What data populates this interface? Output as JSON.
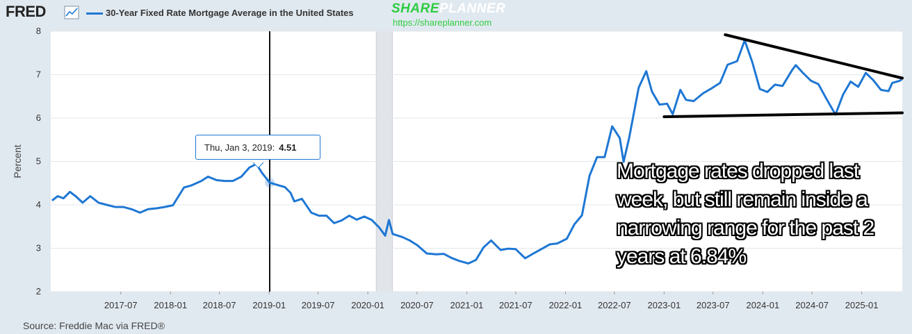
{
  "header": {
    "logo_text": "FRED",
    "logo_icon": "line-chart-icon",
    "series_title": "30-Year Fixed Rate Mortgage Average in the United States",
    "series_color": "#1e77d3"
  },
  "watermark": {
    "brand_part1": "SHARE",
    "brand_part2": "PLANNER",
    "url": "https://shareplanner.com",
    "brand_color": "#2ecc40"
  },
  "tooltip": {
    "date": "Thu, Jan 3, 2019:",
    "value": "4.51"
  },
  "annotation": {
    "text": "Mortgage rates dropped last week, but still remain inside a narrowing range for the past 2 years at 6.84%"
  },
  "source": "Source: Freddie Mac via FRED®",
  "chart_data": {
    "type": "line",
    "ylabel": "Percent",
    "ylim": [
      2,
      8
    ],
    "yticks": [
      2,
      3,
      4,
      5,
      6,
      7,
      8
    ],
    "xlim": [
      "2016-10-15",
      "2025-05-31"
    ],
    "xticks": [
      "2017-07",
      "2018-01",
      "2018-07",
      "2019-01",
      "2019-07",
      "2020-01",
      "2020-07",
      "2021-01",
      "2021-07",
      "2022-01",
      "2022-07",
      "2023-01",
      "2023-07",
      "2024-01",
      "2024-07",
      "2025-01"
    ],
    "grid": "horizontal",
    "recession": {
      "start": "2020-02",
      "end": "2020-04"
    },
    "crosshair": "2019-01-03",
    "series": [
      {
        "values": [
          [
            "2016-10-20",
            4.1
          ],
          [
            "2016-11-10",
            4.2
          ],
          [
            "2016-12-01",
            4.15
          ],
          [
            "2016-12-25",
            4.3
          ],
          [
            "2017-01-15",
            4.2
          ],
          [
            "2017-02-10",
            4.05
          ],
          [
            "2017-03-10",
            4.2
          ],
          [
            "2017-04-10",
            4.05
          ],
          [
            "2017-05-10",
            4.0
          ],
          [
            "2017-06-10",
            3.95
          ],
          [
            "2017-07-10",
            3.95
          ],
          [
            "2017-08-10",
            3.9
          ],
          [
            "2017-09-10",
            3.82
          ],
          [
            "2017-10-10",
            3.9
          ],
          [
            "2017-11-10",
            3.92
          ],
          [
            "2017-12-10",
            3.95
          ],
          [
            "2018-01-10",
            3.99
          ],
          [
            "2018-01-31",
            4.2
          ],
          [
            "2018-02-20",
            4.4
          ],
          [
            "2018-03-20",
            4.45
          ],
          [
            "2018-04-25",
            4.55
          ],
          [
            "2018-05-20",
            4.65
          ],
          [
            "2018-06-20",
            4.57
          ],
          [
            "2018-07-20",
            4.55
          ],
          [
            "2018-08-20",
            4.55
          ],
          [
            "2018-09-20",
            4.65
          ],
          [
            "2018-10-20",
            4.86
          ],
          [
            "2018-11-15",
            4.94
          ],
          [
            "2018-12-05",
            4.74
          ],
          [
            "2019-01-03",
            4.51
          ],
          [
            "2019-01-31",
            4.46
          ],
          [
            "2019-02-28",
            4.41
          ],
          [
            "2019-03-21",
            4.28
          ],
          [
            "2019-04-04",
            4.08
          ],
          [
            "2019-05-02",
            4.14
          ],
          [
            "2019-06-06",
            3.82
          ],
          [
            "2019-07-04",
            3.75
          ],
          [
            "2019-08-01",
            3.75
          ],
          [
            "2019-08-29",
            3.58
          ],
          [
            "2019-09-26",
            3.64
          ],
          [
            "2019-10-24",
            3.75
          ],
          [
            "2019-11-21",
            3.66
          ],
          [
            "2019-12-19",
            3.73
          ],
          [
            "2020-01-16",
            3.65
          ],
          [
            "2020-02-13",
            3.47
          ],
          [
            "2020-03-05",
            3.29
          ],
          [
            "2020-03-19",
            3.65
          ],
          [
            "2020-04-02",
            3.33
          ],
          [
            "2020-05-07",
            3.26
          ],
          [
            "2020-06-04",
            3.18
          ],
          [
            "2020-07-02",
            3.07
          ],
          [
            "2020-08-06",
            2.88
          ],
          [
            "2020-09-10",
            2.86
          ],
          [
            "2020-10-08",
            2.87
          ],
          [
            "2020-11-05",
            2.78
          ],
          [
            "2020-12-03",
            2.71
          ],
          [
            "2021-01-07",
            2.65
          ],
          [
            "2021-02-04",
            2.73
          ],
          [
            "2021-03-04",
            3.02
          ],
          [
            "2021-04-01",
            3.18
          ],
          [
            "2021-05-06",
            2.96
          ],
          [
            "2021-06-03",
            2.99
          ],
          [
            "2021-07-01",
            2.98
          ],
          [
            "2021-08-05",
            2.77
          ],
          [
            "2021-09-02",
            2.87
          ],
          [
            "2021-10-07",
            2.99
          ],
          [
            "2021-11-04",
            3.09
          ],
          [
            "2021-12-02",
            3.11
          ],
          [
            "2022-01-06",
            3.22
          ],
          [
            "2022-02-03",
            3.55
          ],
          [
            "2022-03-03",
            3.76
          ],
          [
            "2022-03-31",
            4.67
          ],
          [
            "2022-04-28",
            5.1
          ],
          [
            "2022-05-26",
            5.1
          ],
          [
            "2022-06-23",
            5.81
          ],
          [
            "2022-07-21",
            5.54
          ],
          [
            "2022-08-04",
            4.99
          ],
          [
            "2022-08-25",
            5.55
          ],
          [
            "2022-09-29",
            6.7
          ],
          [
            "2022-10-27",
            7.08
          ],
          [
            "2022-11-17",
            6.61
          ],
          [
            "2022-12-15",
            6.31
          ],
          [
            "2023-01-12",
            6.33
          ],
          [
            "2023-02-02",
            6.09
          ],
          [
            "2023-03-02",
            6.65
          ],
          [
            "2023-03-23",
            6.42
          ],
          [
            "2023-04-20",
            6.39
          ],
          [
            "2023-05-25",
            6.57
          ],
          [
            "2023-06-22",
            6.67
          ],
          [
            "2023-07-27",
            6.81
          ],
          [
            "2023-08-24",
            7.23
          ],
          [
            "2023-09-28",
            7.31
          ],
          [
            "2023-10-26",
            7.79
          ],
          [
            "2023-11-23",
            7.29
          ],
          [
            "2023-12-21",
            6.67
          ],
          [
            "2024-01-18",
            6.6
          ],
          [
            "2024-02-15",
            6.77
          ],
          [
            "2024-03-14",
            6.74
          ],
          [
            "2024-04-18",
            7.1
          ],
          [
            "2024-05-02",
            7.22
          ],
          [
            "2024-05-30",
            7.03
          ],
          [
            "2024-06-27",
            6.86
          ],
          [
            "2024-07-25",
            6.78
          ],
          [
            "2024-08-22",
            6.46
          ],
          [
            "2024-09-26",
            6.08
          ],
          [
            "2024-10-24",
            6.54
          ],
          [
            "2024-11-21",
            6.84
          ],
          [
            "2024-12-19",
            6.72
          ],
          [
            "2025-01-16",
            7.04
          ],
          [
            "2025-02-13",
            6.87
          ],
          [
            "2025-03-13",
            6.65
          ],
          [
            "2025-04-10",
            6.62
          ],
          [
            "2025-04-24",
            6.81
          ],
          [
            "2025-05-22",
            6.86
          ],
          [
            "2025-05-29",
            6.89
          ]
        ]
      }
    ],
    "trendlines": [
      {
        "from": [
          "2023-08-15",
          7.92
        ],
        "to": [
          "2025-05-31",
          6.92
        ]
      },
      {
        "from": [
          "2023-01-01",
          6.03
        ],
        "to": [
          "2025-05-31",
          6.12
        ]
      }
    ]
  }
}
